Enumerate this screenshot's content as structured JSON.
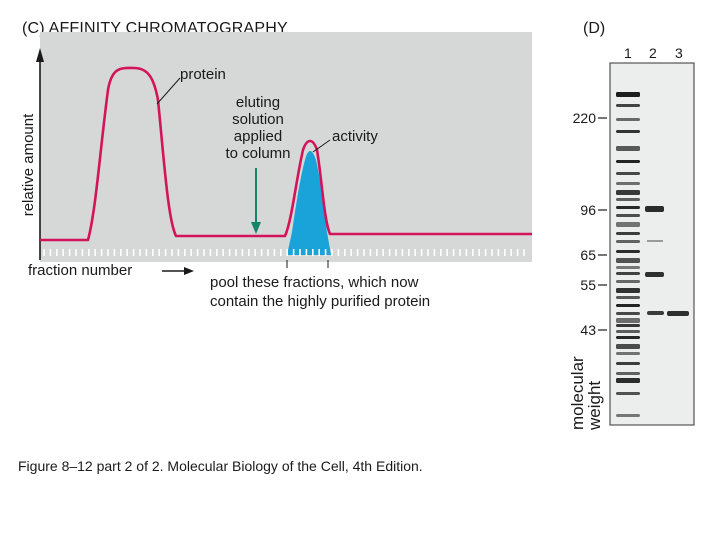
{
  "panel_c": {
    "title": "(C)  AFFINITY CHROMATOGRAPHY",
    "y_axis_label": "relative amount",
    "x_axis_label": "fraction number",
    "labels": {
      "protein": "protein",
      "eluting": [
        "eluting",
        "solution",
        "applied",
        "to column"
      ],
      "activity": "activity",
      "pool": [
        "pool these fractions, which now",
        "contain the highly purified protein"
      ]
    },
    "colors": {
      "background": "#d5d8d6",
      "protein_curve": "#d4145a",
      "activity_fill": "#1aa3d9",
      "arrow": "#15856a"
    }
  },
  "panel_d": {
    "title": "(D)",
    "lanes": [
      "1",
      "2",
      "3"
    ],
    "mw_markers": [
      "220",
      "96",
      "65",
      "55",
      "43"
    ],
    "axis_label": [
      "molecular",
      "weight"
    ]
  },
  "caption": "Figure 8–12 part 2 of 2. Molecular Biology of the Cell, 4th Edition."
}
